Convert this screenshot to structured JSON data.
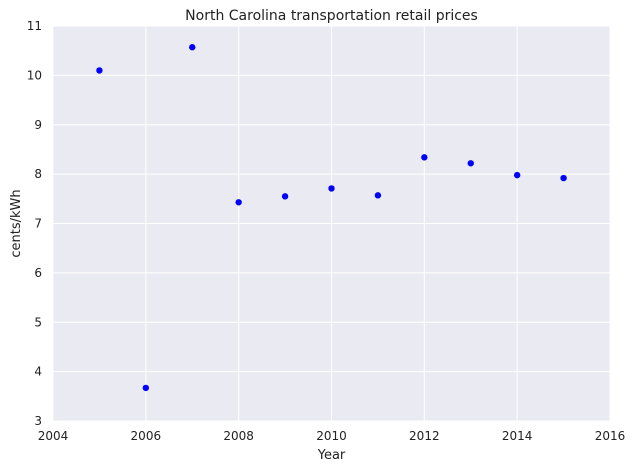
{
  "chart_data": {
    "type": "scatter",
    "title": "North Carolina   transportation retail prices",
    "xlabel": "Year",
    "ylabel": "cents/kWh",
    "xlim": [
      2004,
      2016
    ],
    "ylim": [
      3,
      11
    ],
    "x_ticks": [
      "2004",
      "2006",
      "2008",
      "2010",
      "2012",
      "2014",
      "2016"
    ],
    "y_ticks": [
      "3",
      "4",
      "5",
      "6",
      "7",
      "8",
      "9",
      "10",
      "11"
    ],
    "grid": true,
    "point_color": "#0000ff",
    "background_color": "#eaeaf2",
    "x": [
      2005,
      2006,
      2007,
      2008,
      2009,
      2010,
      2011,
      2012,
      2013,
      2014,
      2015
    ],
    "y": [
      10.1,
      3.67,
      10.57,
      7.43,
      7.55,
      7.71,
      7.57,
      8.34,
      8.22,
      7.98,
      7.92
    ]
  }
}
